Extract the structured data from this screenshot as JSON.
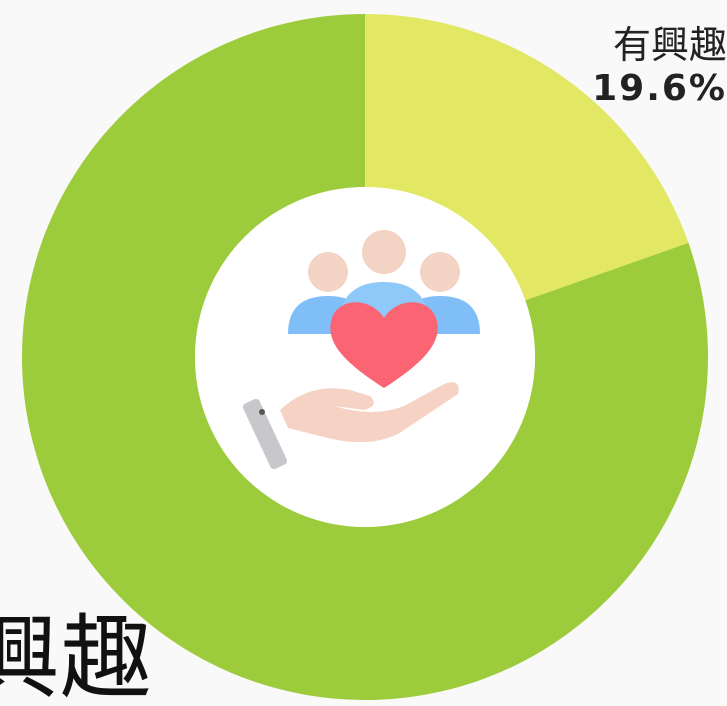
{
  "chart_data": {
    "type": "donut",
    "categories": [
      "有興趣",
      "興趣"
    ],
    "values": [
      19.6,
      80.4
    ],
    "value_labels": [
      "19.6%",
      null
    ],
    "colors": [
      "#e2e864",
      "#9ccb3b"
    ]
  }
}
